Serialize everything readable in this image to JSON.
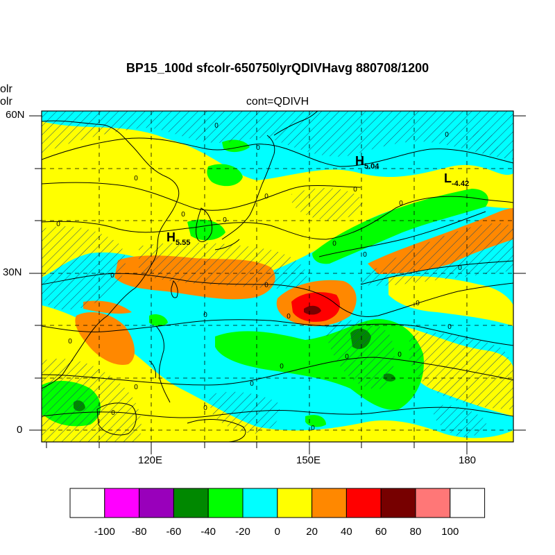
{
  "header": {
    "main_title": "BP15_100d sfcolr-650750lyrQDIVHavg  880708/1200",
    "sub_title": "cont=QDIVH",
    "side_label_1": "olr",
    "side_label_2": "olr"
  },
  "axes": {
    "y_ticks": [
      "60N",
      "30N",
      "0"
    ],
    "x_ticks": [
      "120E",
      "150E",
      "180"
    ]
  },
  "extrema": [
    {
      "letter": "H",
      "value": "5.04"
    },
    {
      "letter": "L",
      "value": "-4.42"
    },
    {
      "letter": "H",
      "value": "5.55"
    }
  ],
  "contour_label": "0",
  "colorbar": {
    "labels": [
      "-100",
      "-80",
      "-60",
      "-40",
      "-20",
      "0",
      "20",
      "40",
      "60",
      "80",
      "100"
    ],
    "colors": [
      "#ffffff",
      "#ff00ff",
      "#9900bb",
      "#008800",
      "#00ff00",
      "#00ffff",
      "#ffff00",
      "#ff8800",
      "#ff0000",
      "#770000",
      "#ff7777",
      "#ffffff"
    ]
  },
  "field_colors": {
    "cyan": "#00ffff",
    "yellow": "#ffff00",
    "green": "#00ff00",
    "dark_green": "#008800",
    "orange": "#ff8800",
    "red": "#ff0000",
    "dark_red": "#770000",
    "pink": "#ff7777"
  }
}
